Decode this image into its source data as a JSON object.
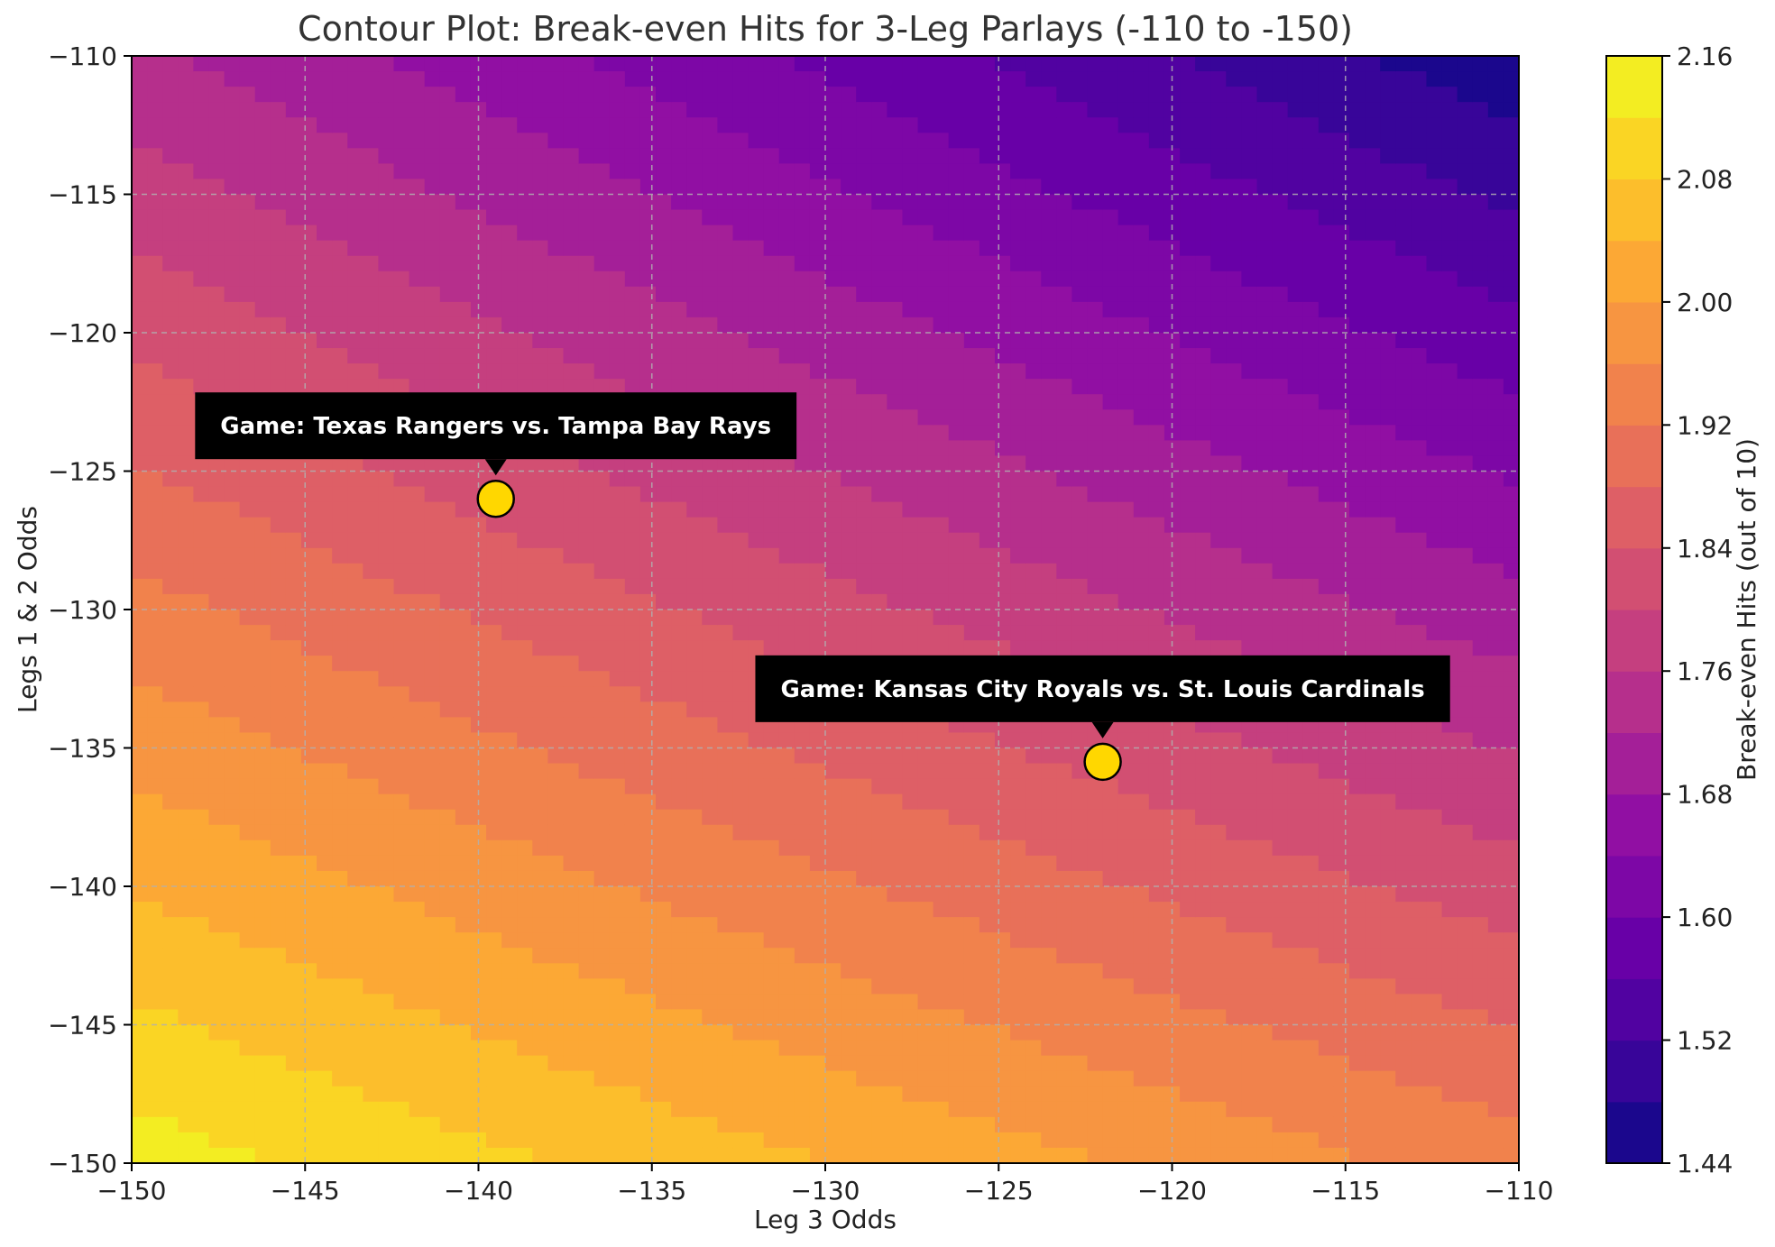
{
  "chart_data": {
    "type": "contour",
    "title": "Contour Plot: Break-even Hits for 3-Leg Parlays (-110 to -150)",
    "xlabel": "Leg 3 Odds",
    "ylabel": "Legs 1 & 2 Odds",
    "xlim": [
      -150,
      -110
    ],
    "ylim": [
      -150,
      -110
    ],
    "x_ticks": [
      -150,
      -145,
      -140,
      -135,
      -130,
      -125,
      -120,
      -115,
      -110
    ],
    "y_ticks": [
      -150,
      -145,
      -140,
      -135,
      -130,
      -125,
      -120,
      -115,
      -110
    ],
    "x_tick_labels": [
      "−150",
      "−145",
      "−140",
      "−135",
      "−130",
      "−125",
      "−120",
      "−115",
      "−110"
    ],
    "y_tick_labels": [
      "−150",
      "−145",
      "−140",
      "−135",
      "−130",
      "−125",
      "−120",
      "−115",
      "−110"
    ],
    "grid": true,
    "colormap": "plasma",
    "colorbar": {
      "label": "Break-even Hits (out of 10)",
      "range": [
        1.44,
        2.16
      ],
      "level_step": 0.04,
      "ticks": [
        1.44,
        1.52,
        1.6,
        1.68,
        1.76,
        1.84,
        1.92,
        2.0,
        2.08,
        2.16
      ],
      "tick_labels": [
        "1.44",
        "1.52",
        "1.60",
        "1.68",
        "1.76",
        "1.84",
        "1.92",
        "2.00",
        "2.08",
        "2.16"
      ]
    },
    "surface_corners": {
      "x_-150_y_-150": 2.14,
      "x_-110_y_-150": 1.94,
      "x_-150_y_-110": 1.73,
      "x_-110_y_-110": 1.45
    },
    "annotations": [
      {
        "label": "Game: Texas Rangers vs. Tampa Bay Rays",
        "x": -139.5,
        "y": -126,
        "marker_color": "#FFD700"
      },
      {
        "label": "Game: Kansas City Royals vs. St. Louis Cardinals",
        "x": -122,
        "y": -135.5,
        "marker_color": "#FFD700"
      }
    ]
  }
}
